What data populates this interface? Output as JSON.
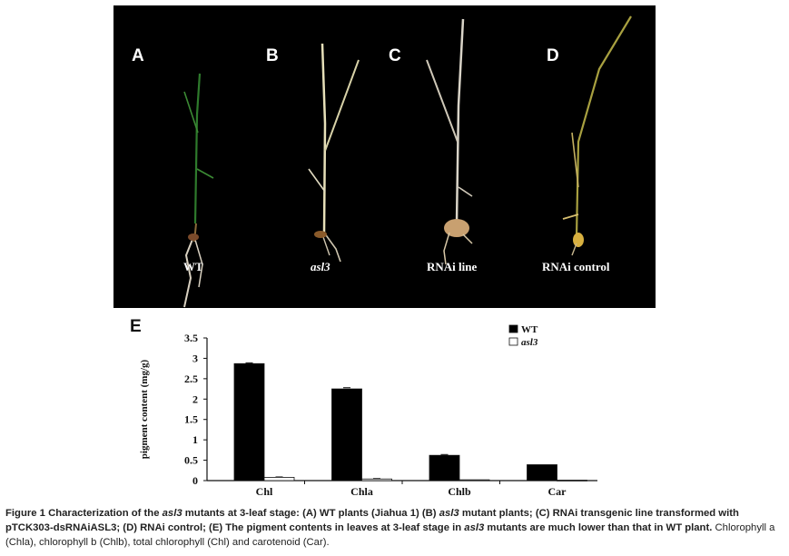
{
  "panels": {
    "letters": [
      "A",
      "B",
      "C",
      "D"
    ],
    "labels": [
      "WT",
      "asl3",
      "RNAi line",
      "RNAi control"
    ]
  },
  "panel_e_letter": "E",
  "chart_data": {
    "type": "bar",
    "categories": [
      "Chl",
      "Chla",
      "Chlb",
      "Car"
    ],
    "series": [
      {
        "name": "WT",
        "values": [
          2.87,
          2.25,
          0.62,
          0.39
        ],
        "errors": [
          0.02,
          0.03,
          0.02,
          0.0
        ],
        "color": "#000000"
      },
      {
        "name": "asl3",
        "values": [
          0.08,
          0.04,
          0.02,
          0.01
        ],
        "errors": [
          0.01,
          0.01,
          0.0,
          0.0
        ],
        "color": "#ffffff"
      }
    ],
    "ylabel": "pigment content (mg/g)",
    "yticks": [
      "0",
      "0.5",
      "1",
      "1.5",
      "2",
      "2.5",
      "3",
      "3.5"
    ],
    "ylim": [
      0,
      3.5
    ],
    "legend_position": "top-right",
    "grid": false
  },
  "caption": {
    "part1": "Figure 1 Characterization of the ",
    "gene1": "asl3",
    "part2": " mutants at 3-leaf stage: (A) WT plants (Jiahua 1) (B) ",
    "gene2": "asl3",
    "part3": " mutant plants; (C) RNAi transgenic line transformed with pTCK303-dsRNAiASL3; (D) RNAi control; (E) The pigment contents in leaves at 3-leaf stage in ",
    "gene3": "asl3",
    "part4": " mutants are much lower than that in WT plant.",
    "plain": " Chlorophyll a (Chla), chlorophyll b (Chlb), total chlorophyll (Chl) and carotenoid (Car)."
  }
}
